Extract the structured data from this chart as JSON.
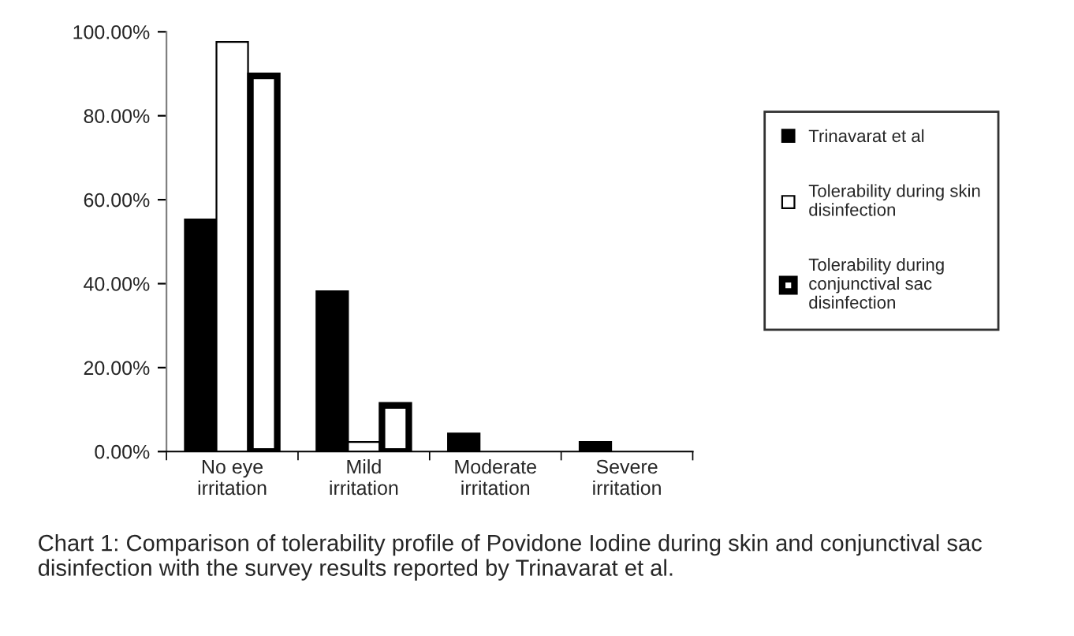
{
  "chart_data": {
    "type": "bar",
    "categories": [
      "No eye\nirritation",
      "Mild\nirritation",
      "Moderate\nirritation",
      "Severe\nirritation"
    ],
    "series": [
      {
        "name": "Trinavarat et al",
        "color": "#000000",
        "values": [
          55.3,
          38.2,
          4.3,
          2.3
        ]
      },
      {
        "name": "Tolerability during skin\ndisinfection",
        "color": "#ffffff",
        "values": [
          97.6,
          2.3,
          null,
          null
        ]
      },
      {
        "name": "Tolerability during\nconjunctival sac\ndisinfection",
        "color": "#ffffff",
        "values": [
          89.5,
          11,
          null,
          null
        ]
      }
    ],
    "ylim": [
      0,
      100
    ],
    "yticks": [
      {
        "value": 0,
        "label": "0.00%"
      },
      {
        "value": 20,
        "label": "20.00%"
      },
      {
        "value": 40,
        "label": "40.00%"
      },
      {
        "value": 60,
        "label": "60.00%"
      },
      {
        "value": 80,
        "label": "80.00%"
      },
      {
        "value": 100,
        "label": "100.00%"
      }
    ],
    "grid": false,
    "legend": "right",
    "annotations": [
      "Chart 1: Comparison of tolerability profile of Povidone Iodine during skin and conjunctival sac disinfection with the survey results reported by Trinavarat et al."
    ]
  }
}
